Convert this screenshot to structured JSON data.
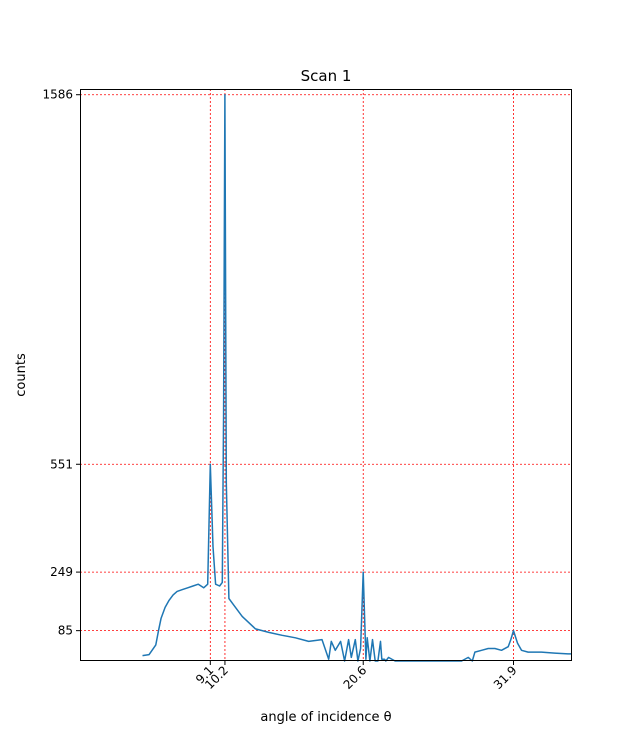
{
  "chart_data": {
    "type": "line",
    "title": "Scan 1",
    "xlabel": "angle of incidence θ",
    "ylabel": "counts",
    "xlim": [
      -0.7,
      36.3
    ],
    "ylim": [
      0,
      1602
    ],
    "grid": true,
    "xticks": [
      9.1,
      10.2,
      20.6,
      31.9
    ],
    "xtick_labels": [
      "9.1",
      "10.2",
      "20.6",
      "31.9"
    ],
    "yticks": [
      85,
      249,
      551,
      1586
    ],
    "ytick_labels": [
      "85",
      "249",
      "551",
      "1586"
    ],
    "colors": {
      "line": "#1f77b4",
      "grid": "#ff0000",
      "axes": "#000000"
    },
    "series": [
      {
        "x": [
          4.0,
          4.5,
          5.0,
          5.2,
          5.4,
          5.7,
          6.0,
          6.3,
          6.6,
          7.0,
          7.4,
          7.8,
          8.2,
          8.6,
          8.9,
          9.1,
          9.3,
          9.5,
          9.8,
          10.0,
          10.1,
          10.2,
          10.3,
          10.5,
          10.8,
          11.5,
          12.5,
          13.5,
          14.5,
          15.5,
          16.5,
          17.5,
          18.0,
          18.2,
          18.5,
          18.9,
          19.2,
          19.5,
          19.7,
          20.0,
          20.2,
          20.4,
          20.6,
          20.8,
          20.9,
          21.1,
          21.3,
          21.5,
          21.7,
          21.9,
          22.0,
          22.2,
          22.3,
          22.5,
          23.0,
          23.5,
          24.0,
          25.0,
          26.0,
          27.0,
          28.0,
          28.5,
          28.8,
          29.0,
          29.5,
          30.0,
          30.5,
          31.0,
          31.5,
          31.7,
          31.9,
          32.2,
          32.5,
          33.0,
          34.0,
          35.0,
          36.0,
          36.3
        ],
        "y": [
          15,
          18,
          45,
          85,
          120,
          150,
          170,
          185,
          195,
          200,
          205,
          210,
          215,
          205,
          215,
          551,
          320,
          215,
          210,
          220,
          700,
          1586,
          500,
          175,
          160,
          125,
          90,
          80,
          72,
          65,
          55,
          60,
          5,
          55,
          30,
          55,
          0,
          60,
          10,
          60,
          0,
          35,
          249,
          5,
          65,
          0,
          60,
          0,
          0,
          55,
          5,
          5,
          0,
          10,
          0,
          0,
          0,
          0,
          0,
          0,
          0,
          10,
          0,
          25,
          30,
          35,
          35,
          30,
          40,
          60,
          85,
          50,
          30,
          25,
          25,
          22,
          20,
          20
        ]
      }
    ]
  }
}
